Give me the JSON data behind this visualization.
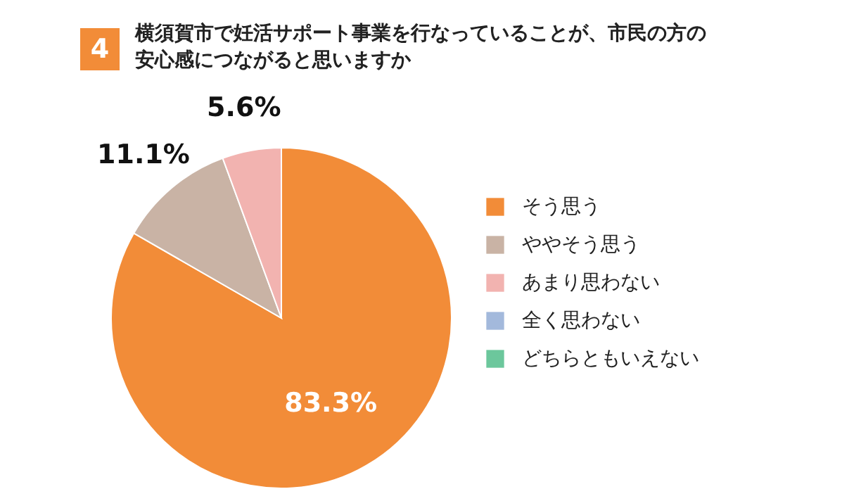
{
  "chart_data": {
    "type": "pie",
    "title": "横須賀市で妊活サポート事業を行なっていることが、市民の方の安心感につながると思いますか",
    "annotations": [
      "4"
    ],
    "categories": [
      "そう思う",
      "ややそう思う",
      "あまり思わない",
      "全く思わない",
      "どちらともいえない"
    ],
    "values": [
      83.3,
      11.1,
      5.6,
      0,
      0
    ],
    "colors": [
      "#f28c38",
      "#c9b3a5",
      "#f2b3b0",
      "#a3b9dc",
      "#6cc79c"
    ],
    "value_labels": [
      "83.3%",
      "11.1%",
      "5.6%",
      null,
      null
    ],
    "legend": "right"
  }
}
